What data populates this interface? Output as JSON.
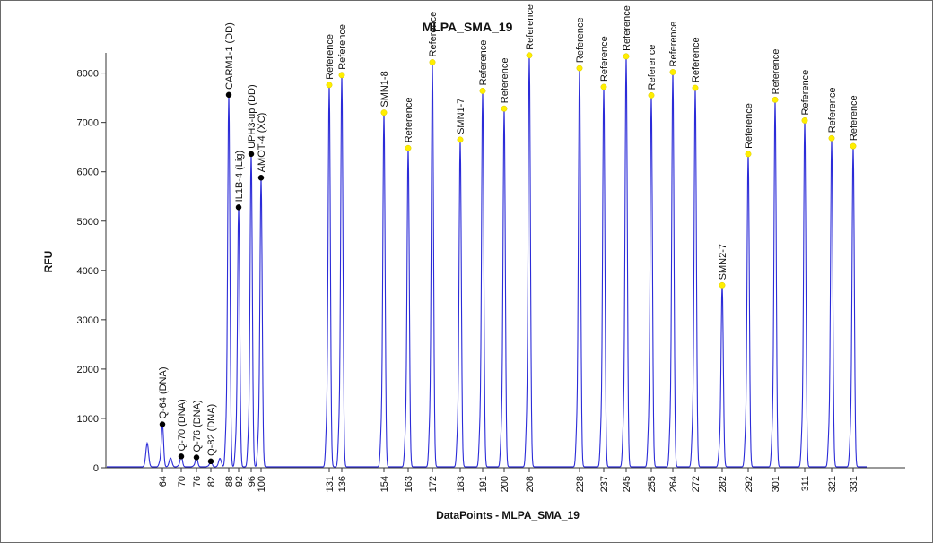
{
  "chart_data": {
    "type": "line",
    "title": "MLPA_SMA_19",
    "xlabel": "DataPoints - MLPA_SMA_19",
    "ylabel": "RFU",
    "ylim": [
      0,
      8400
    ],
    "y_ticks": [
      0,
      1000,
      2000,
      3000,
      4000,
      5000,
      6000,
      7000,
      8000
    ],
    "x_ticks": [
      "64",
      "70",
      "76",
      "82",
      "88",
      "92",
      "96",
      "100",
      "131",
      "136",
      "154",
      "163",
      "172",
      "183",
      "191",
      "200",
      "208",
      "228",
      "237",
      "245",
      "255",
      "264",
      "272",
      "282",
      "292",
      "301",
      "311",
      "321",
      "331"
    ],
    "grid": false,
    "series_color": "#2b2bd8",
    "noise_peaks": [
      {
        "pos": 40,
        "height": 480
      },
      {
        "pos": 66,
        "height": 180
      },
      {
        "pos": 121,
        "height": 170
      }
    ],
    "peaks": [
      {
        "label": "Q-64 (DNA)",
        "x_tick": "64",
        "height": 880,
        "marker": "black"
      },
      {
        "label": "Q-70 (DNA)",
        "x_tick": "70",
        "height": 230,
        "marker": "black"
      },
      {
        "label": "Q-76 (DNA)",
        "x_tick": "76",
        "height": 210,
        "marker": "black"
      },
      {
        "label": "Q-82 (DNA)",
        "x_tick": "82",
        "height": 130,
        "marker": "black"
      },
      {
        "label": "CARM1-1 (DD)",
        "x_tick": "88",
        "height": 7560,
        "marker": "black"
      },
      {
        "label": "IL1B-4 (Lig)",
        "x_tick": "92",
        "height": 5280,
        "marker": "black"
      },
      {
        "label": "UPH3-up (DD)",
        "x_tick": "96",
        "height": 6360,
        "marker": "black"
      },
      {
        "label": "AMOT-4 (XC)",
        "x_tick": "100",
        "height": 5880,
        "marker": "black"
      },
      {
        "label": "Reference",
        "x_tick": "131",
        "height": 7760,
        "marker": "yellow"
      },
      {
        "label": "Reference",
        "x_tick": "136",
        "height": 7960,
        "marker": "yellow"
      },
      {
        "label": "SMN1-8",
        "x_tick": "154",
        "height": 7200,
        "marker": "yellow"
      },
      {
        "label": "Reference",
        "x_tick": "163",
        "height": 6480,
        "marker": "yellow"
      },
      {
        "label": "Reference",
        "x_tick": "172",
        "height": 8220,
        "marker": "yellow"
      },
      {
        "label": "SMN1-7",
        "x_tick": "183",
        "height": 6650,
        "marker": "yellow"
      },
      {
        "label": "Reference",
        "x_tick": "191",
        "height": 7640,
        "marker": "yellow"
      },
      {
        "label": "Reference",
        "x_tick": "200",
        "height": 7280,
        "marker": "yellow"
      },
      {
        "label": "Reference",
        "x_tick": "208",
        "height": 8360,
        "marker": "yellow"
      },
      {
        "label": "Reference",
        "x_tick": "228",
        "height": 8100,
        "marker": "yellow"
      },
      {
        "label": "Reference",
        "x_tick": "237",
        "height": 7720,
        "marker": "yellow"
      },
      {
        "label": "Reference",
        "x_tick": "245",
        "height": 8340,
        "marker": "yellow"
      },
      {
        "label": "Reference",
        "x_tick": "255",
        "height": 7550,
        "marker": "yellow"
      },
      {
        "label": "Reference",
        "x_tick": "264",
        "height": 8020,
        "marker": "yellow"
      },
      {
        "label": "Reference",
        "x_tick": "272",
        "height": 7700,
        "marker": "yellow"
      },
      {
        "label": "SMN2-7",
        "x_tick": "282",
        "height": 3700,
        "marker": "yellow"
      },
      {
        "label": "Reference",
        "x_tick": "292",
        "height": 6360,
        "marker": "yellow"
      },
      {
        "label": "Reference",
        "x_tick": "301",
        "height": 7460,
        "marker": "yellow"
      },
      {
        "label": "Reference",
        "x_tick": "311",
        "height": 7040,
        "marker": "yellow"
      },
      {
        "label": "Reference",
        "x_tick": "321",
        "height": 6680,
        "marker": "yellow"
      },
      {
        "label": "Reference",
        "x_tick": "331",
        "height": 6520,
        "marker": "yellow"
      }
    ]
  }
}
